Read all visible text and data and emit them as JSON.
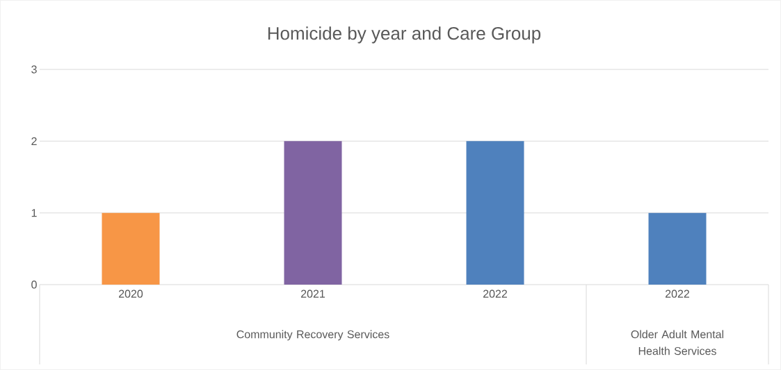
{
  "chart_data": {
    "type": "bar",
    "title": "Homicide by year and Care Group",
    "categories": [
      "2020",
      "2021",
      "2022",
      "2022"
    ],
    "values": [
      1,
      2,
      2,
      1
    ],
    "colors": [
      "#f79646",
      "#8064a2",
      "#4f81bd",
      "#4f81bd"
    ],
    "ylim": [
      0,
      3
    ],
    "yticks": [
      0,
      1,
      2,
      3
    ],
    "grid": "y",
    "annotations": [
      "Community Recovery Services",
      "Older Adult Mental Health Services"
    ]
  }
}
